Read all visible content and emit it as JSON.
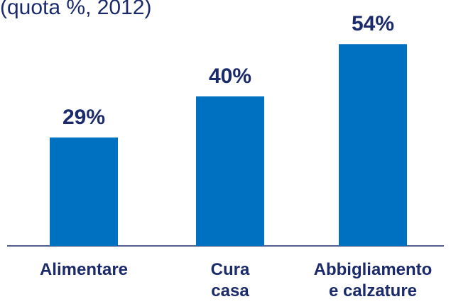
{
  "chart_data": {
    "type": "bar",
    "subtitle": "(quota %, 2012)",
    "categories": [
      "Alimentare",
      "Cura\ncasa",
      "Abbigliamento\ne calzature"
    ],
    "values": [
      29,
      40,
      54
    ],
    "value_labels": [
      "29%",
      "40%",
      "54%"
    ],
    "color": "#0070c0",
    "ylim": [
      0,
      55
    ]
  }
}
